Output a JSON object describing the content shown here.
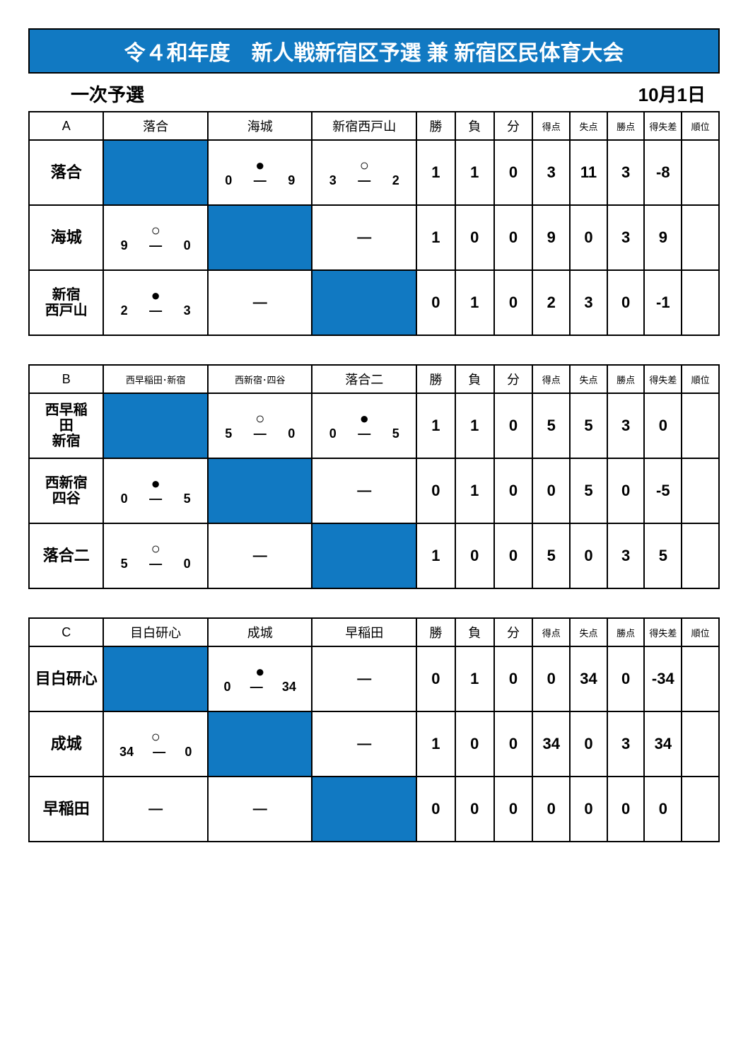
{
  "colors": {
    "accent": "#1179c2",
    "border": "#000000",
    "bg": "#ffffff",
    "title_text": "#ffffff"
  },
  "title": "令４和年度　新人戦新宿区予選 兼 新宿区民体育大会",
  "subtitle": "一次予選",
  "date": "10月1日",
  "stat_headers": {
    "w": "勝",
    "l": "負",
    "d": "分",
    "gf": "得点",
    "ga": "失点",
    "pts": "勝点",
    "gd": "得失差",
    "rank": "順位"
  },
  "groups": [
    {
      "label": "A",
      "cols": [
        "落合",
        "海城",
        "新宿西戸山"
      ],
      "rows": [
        {
          "name": "落合",
          "cells": [
            null,
            {
              "mark": "●",
              "a": "0",
              "b": "9"
            },
            {
              "mark": "○",
              "a": "3",
              "b": "2"
            }
          ],
          "stats": {
            "w": "1",
            "l": "1",
            "d": "0",
            "gf": "3",
            "ga": "11",
            "pts": "3",
            "gd": "-8",
            "rank": ""
          }
        },
        {
          "name": "海城",
          "cells": [
            {
              "mark": "○",
              "a": "9",
              "b": "0"
            },
            null,
            {
              "dash": true
            }
          ],
          "stats": {
            "w": "1",
            "l": "0",
            "d": "0",
            "gf": "9",
            "ga": "0",
            "pts": "3",
            "gd": "9",
            "rank": ""
          }
        },
        {
          "name": "新宿\n西戸山",
          "cells": [
            {
              "mark": "●",
              "a": "2",
              "b": "3"
            },
            {
              "dash": true
            },
            null
          ],
          "stats": {
            "w": "0",
            "l": "1",
            "d": "0",
            "gf": "2",
            "ga": "3",
            "pts": "0",
            "gd": "-1",
            "rank": ""
          }
        }
      ]
    },
    {
      "label": "B",
      "cols": [
        "西早稲田･新宿",
        "西新宿･四谷",
        "落合二"
      ],
      "rows": [
        {
          "name": "西早稲\n田\n新宿",
          "cells": [
            null,
            {
              "mark": "○",
              "a": "5",
              "b": "0"
            },
            {
              "mark": "●",
              "a": "0",
              "b": "5"
            }
          ],
          "stats": {
            "w": "1",
            "l": "1",
            "d": "0",
            "gf": "5",
            "ga": "5",
            "pts": "3",
            "gd": "0",
            "rank": ""
          }
        },
        {
          "name": "西新宿\n四谷",
          "cells": [
            {
              "mark": "●",
              "a": "0",
              "b": "5"
            },
            null,
            {
              "dash": true
            }
          ],
          "stats": {
            "w": "0",
            "l": "1",
            "d": "0",
            "gf": "0",
            "ga": "5",
            "pts": "0",
            "gd": "-5",
            "rank": ""
          }
        },
        {
          "name": "落合二",
          "cells": [
            {
              "mark": "○",
              "a": "5",
              "b": "0"
            },
            {
              "dash": true
            },
            null
          ],
          "stats": {
            "w": "1",
            "l": "0",
            "d": "0",
            "gf": "5",
            "ga": "0",
            "pts": "3",
            "gd": "5",
            "rank": ""
          }
        }
      ]
    },
    {
      "label": "C",
      "cols": [
        "目白研心",
        "成城",
        "早稲田"
      ],
      "rows": [
        {
          "name": "目白研心",
          "cells": [
            null,
            {
              "mark": "●",
              "a": "0",
              "b": "34"
            },
            {
              "dash": true
            }
          ],
          "stats": {
            "w": "0",
            "l": "1",
            "d": "0",
            "gf": "0",
            "ga": "34",
            "pts": "0",
            "gd": "-34",
            "rank": ""
          }
        },
        {
          "name": "成城",
          "cells": [
            {
              "mark": "○",
              "a": "34",
              "b": "0"
            },
            null,
            {
              "dash": true
            }
          ],
          "stats": {
            "w": "1",
            "l": "0",
            "d": "0",
            "gf": "34",
            "ga": "0",
            "pts": "3",
            "gd": "34",
            "rank": ""
          }
        },
        {
          "name": "早稲田",
          "cells": [
            {
              "dash": true
            },
            {
              "dash": true
            },
            null
          ],
          "stats": {
            "w": "0",
            "l": "0",
            "d": "0",
            "gf": "0",
            "ga": "0",
            "pts": "0",
            "gd": "0",
            "rank": ""
          }
        }
      ]
    }
  ]
}
